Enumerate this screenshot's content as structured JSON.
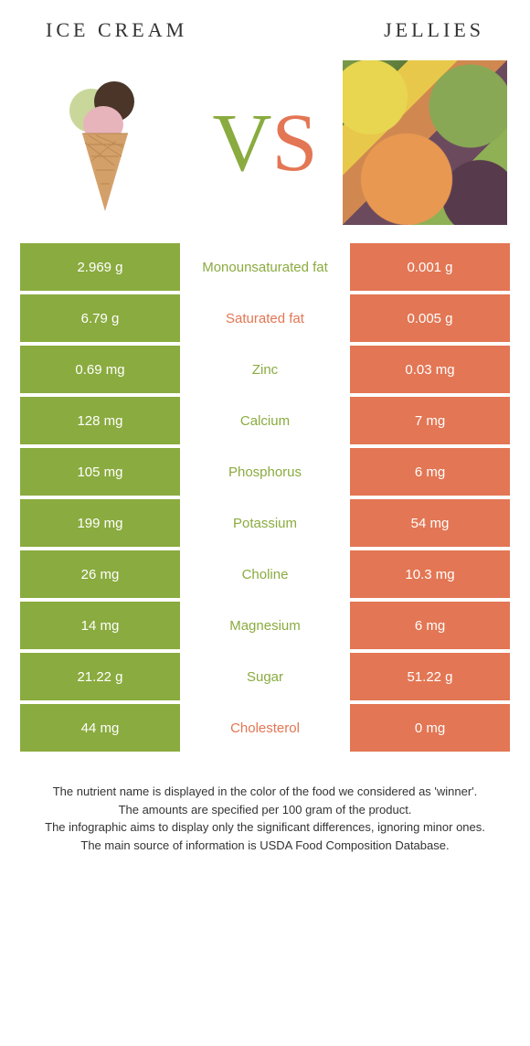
{
  "header": {
    "left_title": "Ice cream",
    "right_title": "Jellies"
  },
  "vs": {
    "v": "V",
    "s": "S"
  },
  "colors": {
    "green": "#8aab3f",
    "orange": "#e37654"
  },
  "rows": [
    {
      "left": "2.969 g",
      "label": "Monounsaturated fat",
      "right": "0.001 g",
      "winner": "green"
    },
    {
      "left": "6.79 g",
      "label": "Saturated fat",
      "right": "0.005 g",
      "winner": "orange"
    },
    {
      "left": "0.69 mg",
      "label": "Zinc",
      "right": "0.03 mg",
      "winner": "green"
    },
    {
      "left": "128 mg",
      "label": "Calcium",
      "right": "7 mg",
      "winner": "green"
    },
    {
      "left": "105 mg",
      "label": "Phosphorus",
      "right": "6 mg",
      "winner": "green"
    },
    {
      "left": "199 mg",
      "label": "Potassium",
      "right": "54 mg",
      "winner": "green"
    },
    {
      "left": "26 mg",
      "label": "Choline",
      "right": "10.3 mg",
      "winner": "green"
    },
    {
      "left": "14 mg",
      "label": "Magnesium",
      "right": "6 mg",
      "winner": "green"
    },
    {
      "left": "21.22 g",
      "label": "Sugar",
      "right": "51.22 g",
      "winner": "green"
    },
    {
      "left": "44 mg",
      "label": "Cholesterol",
      "right": "0 mg",
      "winner": "orange"
    }
  ],
  "footer": {
    "line1": "The nutrient name is displayed in the color of the food we considered as 'winner'.",
    "line2": "The amounts are specified per 100 gram of the product.",
    "line3": "The infographic aims to display only the significant differences, ignoring minor ones.",
    "line4": "The main source of information is USDA Food Composition Database."
  }
}
